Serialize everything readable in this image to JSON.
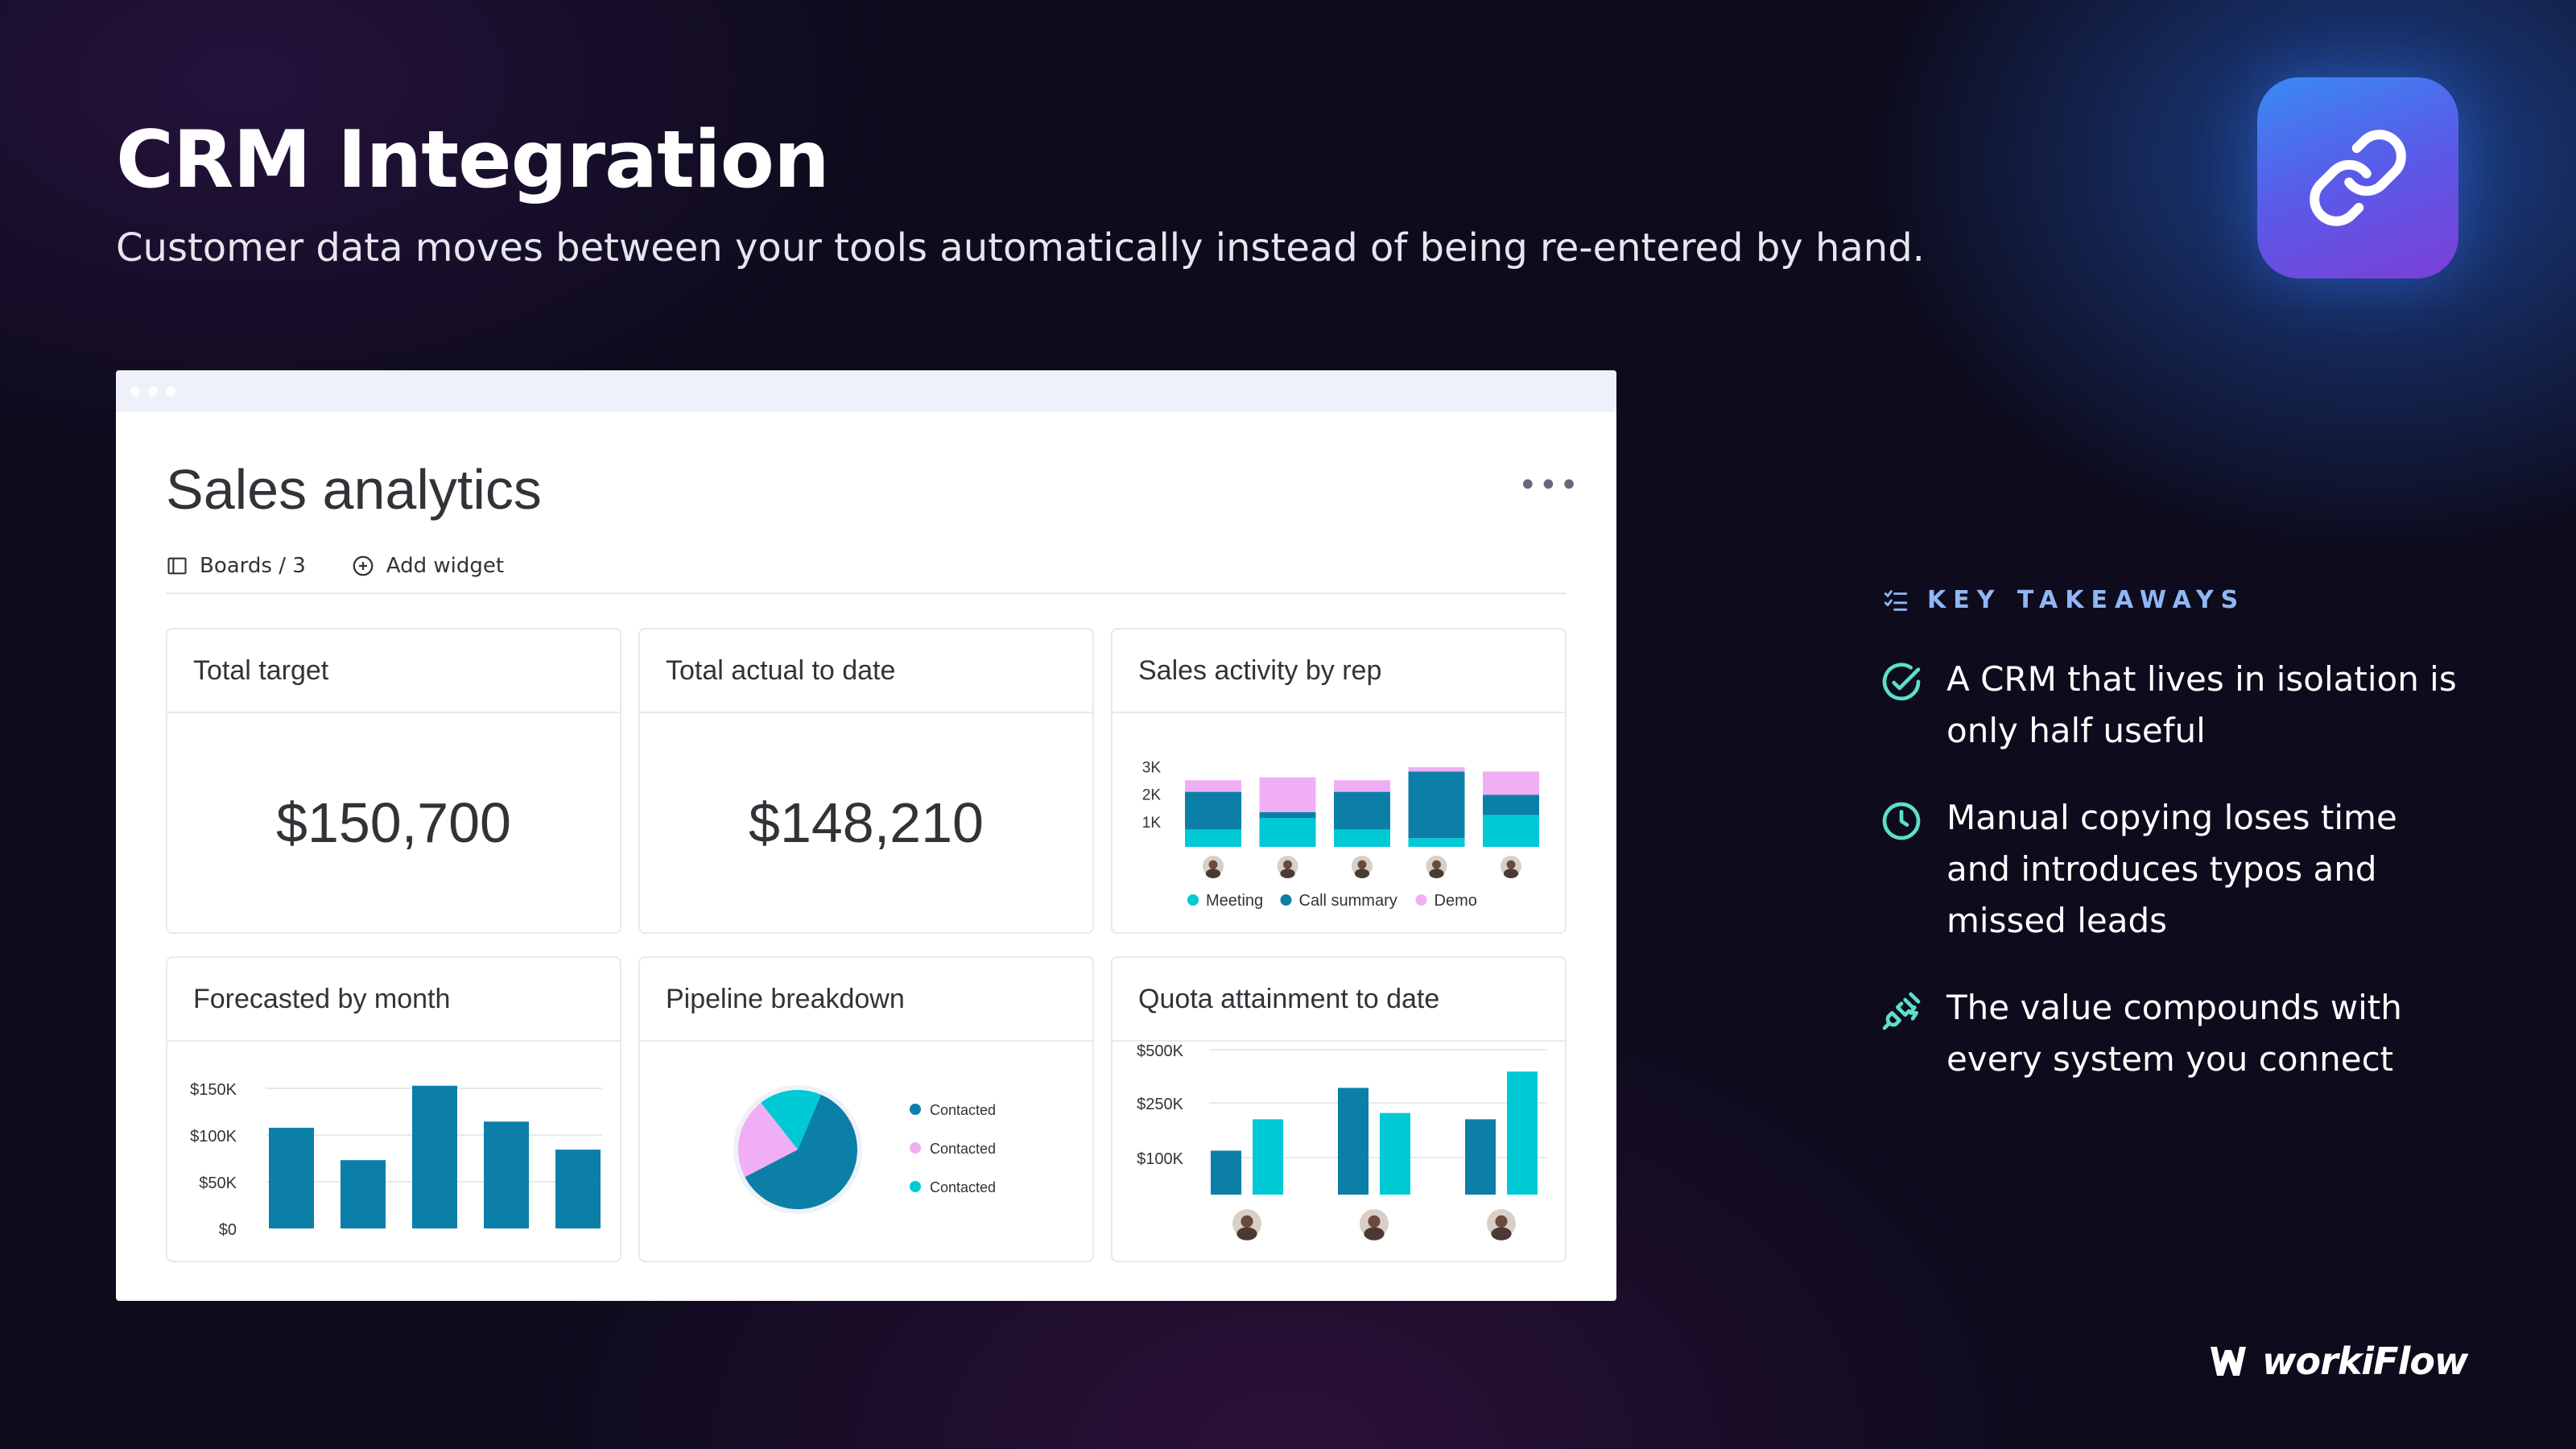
{
  "hero": {
    "title": "CRM Integration",
    "subtitle": "Customer data moves between your tools automatically instead of being re-entered by hand.",
    "icon": "link-icon"
  },
  "dashboard": {
    "title": "Sales analytics",
    "menu": "•••",
    "tabs": [
      {
        "label": "Boards / 3",
        "icon": "board-icon"
      },
      {
        "label": "Add widget",
        "icon": "plus-circle-icon"
      }
    ],
    "cards": {
      "total_target": {
        "title": "Total target",
        "value": "$150,700"
      },
      "total_actual": {
        "title": "Total actual to date",
        "value": "$148,210"
      },
      "sales_activity": {
        "title": "Sales activity by rep"
      },
      "forecast": {
        "title": "Forecasted by month"
      },
      "pipeline": {
        "title": "Pipeline breakdown"
      },
      "quota": {
        "title": "Quota attainment to date"
      }
    }
  },
  "chart_data": [
    {
      "id": "sales_activity",
      "type": "bar",
      "stacked": true,
      "categories": [
        "",
        "",
        "",
        "",
        ""
      ],
      "yticks": [
        "1K",
        "2K",
        "3K"
      ],
      "ylim": [
        0,
        3000
      ],
      "legend": [
        "Meeting",
        "Call summary",
        "Demo"
      ],
      "series": [
        {
          "name": "Meeting",
          "color": "#00c9d6",
          "values": [
            600,
            1000,
            600,
            300,
            1100
          ]
        },
        {
          "name": "Call summary",
          "color": "#0c7fa9",
          "values": [
            1300,
            200,
            1300,
            2300,
            700
          ]
        },
        {
          "name": "Demo",
          "color": "#f0aff5",
          "values": [
            400,
            1200,
            400,
            150,
            800
          ]
        }
      ]
    },
    {
      "id": "forecast",
      "type": "bar",
      "categories": [
        "",
        "",
        "",
        "",
        ""
      ],
      "yticks": [
        "$0",
        "$50K",
        "$100K",
        "$150K"
      ],
      "ylim": [
        0,
        160000
      ],
      "values": [
        115000,
        78000,
        163000,
        122000,
        90000
      ],
      "color": "#0c7fa9"
    },
    {
      "id": "pipeline",
      "type": "pie",
      "legend": [
        "Contacted",
        "Contacted",
        "Contacted"
      ],
      "slices": [
        {
          "label": "Contacted",
          "value": 61,
          "color": "#0c7fa9"
        },
        {
          "label": "Contacted",
          "value": 22,
          "color": "#f0aff5"
        },
        {
          "label": "Contacted",
          "value": 17,
          "color": "#00c9d6"
        }
      ]
    },
    {
      "id": "quota",
      "type": "bar",
      "categories": [
        "",
        "",
        ""
      ],
      "yticks": [
        "$100K",
        "$250K",
        "$500K"
      ],
      "series": [
        {
          "name": "",
          "color": "#0c7fa9",
          "values": [
            0.35,
            0.85,
            0.6
          ]
        },
        {
          "name": "",
          "color": "#00c9d6",
          "values": [
            0.6,
            0.65,
            0.98
          ]
        }
      ]
    }
  ],
  "takeaways": {
    "header": "KEY TAKEAWAYS",
    "header_icon": "checklist-icon",
    "items": [
      {
        "icon": "check-circle-icon",
        "text": "A CRM that lives in isolation is only half useful"
      },
      {
        "icon": "clock-icon",
        "text": "Manual copying loses time and introduces typos and missed leads"
      },
      {
        "icon": "plug-icon",
        "text": "The value compounds with every system you connect"
      }
    ]
  },
  "brand": {
    "name": "workiFlow",
    "icon": "workiflow-logo-icon"
  },
  "colors": {
    "accent": "#8fb7f5",
    "teal": "#00c9d6",
    "blue": "#0c7fa9",
    "pink": "#f0aff5",
    "check": "#5be0c8"
  }
}
